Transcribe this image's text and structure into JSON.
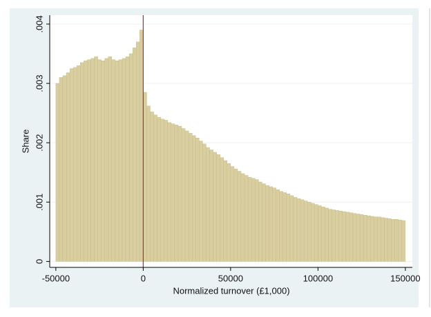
{
  "chart_data": {
    "type": "histogram",
    "xlabel": "Normalized turnover (£1,000)",
    "ylabel": "Share",
    "color": "#d8cea0",
    "edge_color": "#c4b884",
    "refline": 0,
    "refline_color": "#b0283c",
    "grid": true,
    "xlim": [
      -53500,
      154000
    ],
    "ylim": [
      -0.0001,
      0.00415
    ],
    "xticks": [
      -50000,
      0,
      50000,
      100000,
      150000
    ],
    "yticks": [
      0,
      {
        "value": 0.001,
        "label": ".001"
      },
      {
        "value": 0.002,
        "label": ".002"
      },
      {
        "value": 0.003,
        "label": ".003"
      },
      {
        "value": 0.004,
        "label": ".004"
      }
    ],
    "bins": [
      -50000,
      -48000,
      -46000,
      -44000,
      -42000,
      -40000,
      -38000,
      -36000,
      -34000,
      -32000,
      -30000,
      -28000,
      -26000,
      -24000,
      -22000,
      -20000,
      -18000,
      -16000,
      -14000,
      -12000,
      -10000,
      -8000,
      -6000,
      -4000,
      -2000,
      0,
      2000,
      4000,
      6000,
      8000,
      10000,
      12000,
      14000,
      16000,
      18000,
      20000,
      22000,
      24000,
      26000,
      28000,
      30000,
      32000,
      34000,
      36000,
      38000,
      40000,
      42000,
      44000,
      46000,
      48000,
      50000,
      52000,
      54000,
      56000,
      58000,
      60000,
      62000,
      64000,
      66000,
      68000,
      70000,
      72000,
      74000,
      76000,
      78000,
      80000,
      82000,
      84000,
      86000,
      88000,
      90000,
      92000,
      94000,
      96000,
      98000,
      100000,
      102000,
      104000,
      106000,
      108000,
      110000,
      112000,
      114000,
      116000,
      118000,
      120000,
      122000,
      124000,
      126000,
      128000,
      130000,
      132000,
      134000,
      136000,
      138000,
      140000,
      142000,
      144000,
      146000,
      148000,
      150000
    ],
    "values": [
      0.003,
      0.0031,
      0.00313,
      0.00318,
      0.00325,
      0.00327,
      0.0033,
      0.00335,
      0.00338,
      0.0034,
      0.00342,
      0.00345,
      0.0034,
      0.00338,
      0.00342,
      0.00345,
      0.0034,
      0.00338,
      0.0034,
      0.00342,
      0.00345,
      0.0035,
      0.0036,
      0.0037,
      0.0039,
      0.00285,
      0.00262,
      0.00252,
      0.00247,
      0.00243,
      0.0024,
      0.00238,
      0.00234,
      0.00232,
      0.0023,
      0.00228,
      0.00224,
      0.0022,
      0.00216,
      0.00212,
      0.00208,
      0.00203,
      0.00198,
      0.00192,
      0.00188,
      0.00184,
      0.0018,
      0.00175,
      0.0017,
      0.00165,
      0.0016,
      0.00156,
      0.00152,
      0.00148,
      0.00145,
      0.00142,
      0.0014,
      0.00138,
      0.00134,
      0.00131,
      0.00128,
      0.00126,
      0.00124,
      0.00121,
      0.00118,
      0.00116,
      0.00114,
      0.00111,
      0.00108,
      0.00106,
      0.00104,
      0.00102,
      0.001,
      0.00098,
      0.00096,
      0.00094,
      0.00092,
      0.0009,
      0.00088,
      0.00087,
      0.00086,
      0.00085,
      0.00084,
      0.00083,
      0.00082,
      0.00081,
      0.0008,
      0.00079,
      0.00078,
      0.00077,
      0.00076,
      0.00075,
      0.00075,
      0.00074,
      0.00073,
      0.00072,
      0.00071,
      0.00071,
      0.0007,
      0.00069
    ]
  }
}
